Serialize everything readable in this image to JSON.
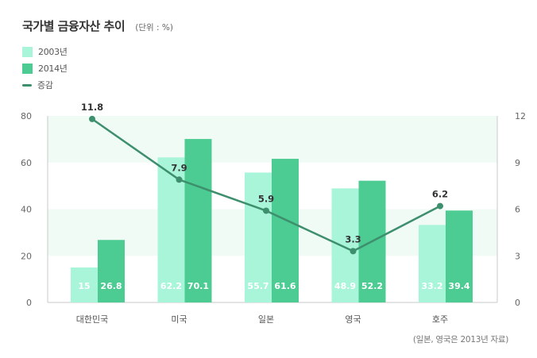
{
  "title": "국가별 금융자산 추이",
  "unit": "(단위 : %)",
  "note": "(일본, 영국은 2013년 자료)",
  "legend": [
    {
      "label": "2003년",
      "kind": "bar",
      "color": "#a8f5da"
    },
    {
      "label": "2014년",
      "kind": "bar",
      "color": "#4ccb92"
    },
    {
      "label": "증감",
      "kind": "line",
      "color": "#3d8f6e"
    }
  ],
  "colors": {
    "bar2003": "#a8f5da",
    "bar2014": "#4ccb92",
    "line": "#3d8f6e",
    "band": "#f1fbf6",
    "axis": "#c8c8c8",
    "tick": "#666666"
  },
  "chart_data": {
    "type": "bar",
    "categories": [
      "대한민국",
      "미국",
      "일본",
      "영국",
      "호주"
    ],
    "series": [
      {
        "name": "2003년",
        "values": [
          15,
          62.2,
          55.7,
          48.9,
          33.2
        ],
        "labels": [
          "15",
          "62.2",
          "55.7",
          "48.9",
          "33.2"
        ]
      },
      {
        "name": "2014년",
        "values": [
          26.8,
          70.1,
          61.6,
          52.2,
          39.4
        ],
        "labels": [
          "26.8",
          "70.1",
          "61.6",
          "52.2",
          "39.4"
        ]
      }
    ],
    "line_series": {
      "name": "증감",
      "axis": "right",
      "values": [
        11.8,
        7.9,
        5.9,
        3.3,
        6.2
      ],
      "labels": [
        "11.8",
        "7.9",
        "5.9",
        "3.3",
        "6.2"
      ]
    },
    "ylim": [
      0,
      80
    ],
    "yticks": [
      "0",
      "20",
      "40",
      "60",
      "80"
    ],
    "y2lim": [
      0,
      12
    ],
    "y2ticks": [
      "0",
      "3",
      "6",
      "9",
      "12"
    ],
    "title": "국가별 금융자산 추이",
    "xlabel": "",
    "ylabel": ""
  }
}
